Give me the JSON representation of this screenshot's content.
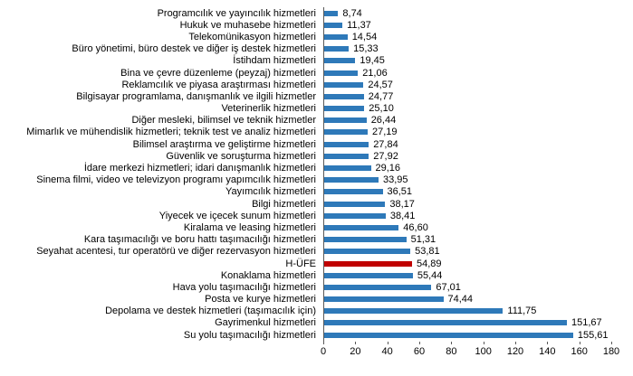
{
  "chart_data": {
    "type": "bar",
    "orientation": "horizontal",
    "title": "",
    "xlabel": "",
    "ylabel": "",
    "xlim": [
      0,
      180
    ],
    "x_ticks": [
      0,
      20,
      40,
      60,
      80,
      100,
      120,
      140,
      160,
      180
    ],
    "grid": false,
    "legend": false,
    "bar_color": "#2E79B9",
    "highlight_color": "#C00000",
    "axis_color": "#595959",
    "rows": [
      {
        "label": "Programcılık ve yayıncılık hizmetleri",
        "value": 8.74,
        "display": "8,74",
        "highlight": false
      },
      {
        "label": "Hukuk ve muhasebe hizmetleri",
        "value": 11.37,
        "display": "11,37",
        "highlight": false
      },
      {
        "label": "Telekomünikasyon hizmetleri",
        "value": 14.54,
        "display": "14,54",
        "highlight": false
      },
      {
        "label": "Büro yönetimi, büro destek ve diğer iş destek hizmetleri",
        "value": 15.33,
        "display": "15,33",
        "highlight": false
      },
      {
        "label": "İstihdam hizmetleri",
        "value": 19.45,
        "display": "19,45",
        "highlight": false
      },
      {
        "label": "Bina ve çevre düzenleme (peyzaj) hizmetleri",
        "value": 21.06,
        "display": "21,06",
        "highlight": false
      },
      {
        "label": "Reklamcılık ve piyasa araştırması hizmetleri",
        "value": 24.57,
        "display": "24,57",
        "highlight": false
      },
      {
        "label": "Bilgisayar programlama, danışmanlık ve ilgili hizmetler",
        "value": 24.77,
        "display": "24,77",
        "highlight": false
      },
      {
        "label": "Veterinerlik hizmetleri",
        "value": 25.1,
        "display": "25,10",
        "highlight": false
      },
      {
        "label": "Diğer mesleki, bilimsel ve teknik hizmetler",
        "value": 26.44,
        "display": "26,44",
        "highlight": false
      },
      {
        "label": "Mimarlık ve mühendislik hizmetleri; teknik test ve analiz hizmetleri",
        "value": 27.19,
        "display": "27,19",
        "highlight": false
      },
      {
        "label": "Bilimsel araştırma ve geliştirme hizmetleri",
        "value": 27.84,
        "display": "27,84",
        "highlight": false
      },
      {
        "label": "Güvenlik ve soruşturma hizmetleri",
        "value": 27.92,
        "display": "27,92",
        "highlight": false
      },
      {
        "label": "İdare merkezi hizmetleri; idari danışmanlık hizmetleri",
        "value": 29.16,
        "display": "29,16",
        "highlight": false
      },
      {
        "label": "Sinema filmi, video ve televizyon programı yapımcılık hizmetleri",
        "value": 33.95,
        "display": "33,95",
        "highlight": false
      },
      {
        "label": "Yayımcılık hizmetleri",
        "value": 36.51,
        "display": "36,51",
        "highlight": false
      },
      {
        "label": "Bilgi hizmetleri",
        "value": 38.17,
        "display": "38,17",
        "highlight": false
      },
      {
        "label": "Yiyecek ve içecek sunum hizmetleri",
        "value": 38.41,
        "display": "38,41",
        "highlight": false
      },
      {
        "label": "Kiralama ve leasing hizmetleri",
        "value": 46.6,
        "display": "46,60",
        "highlight": false
      },
      {
        "label": "Kara taşımacılığı ve boru hattı taşımacılığı hizmetleri",
        "value": 51.31,
        "display": "51,31",
        "highlight": false
      },
      {
        "label": "Seyahat acentesi, tur operatörü ve diğer rezervasyon hizmetleri",
        "value": 53.81,
        "display": "53,81",
        "highlight": false
      },
      {
        "label": "H-ÜFE",
        "value": 54.89,
        "display": "54,89",
        "highlight": true
      },
      {
        "label": "Konaklama hizmetleri",
        "value": 55.44,
        "display": "55,44",
        "highlight": false
      },
      {
        "label": "Hava yolu taşımacılığı hizmetleri",
        "value": 67.01,
        "display": "67,01",
        "highlight": false
      },
      {
        "label": "Posta ve kurye hizmetleri",
        "value": 74.44,
        "display": "74,44",
        "highlight": false
      },
      {
        "label": "Depolama ve destek hizmetleri (taşımacılık için)",
        "value": 111.75,
        "display": "111,75",
        "highlight": false
      },
      {
        "label": "Gayrimenkul hizmetleri",
        "value": 151.67,
        "display": "151,67",
        "highlight": false
      },
      {
        "label": "Su yolu taşımacılığı hizmetleri",
        "value": 155.61,
        "display": "155,61",
        "highlight": false
      }
    ]
  }
}
